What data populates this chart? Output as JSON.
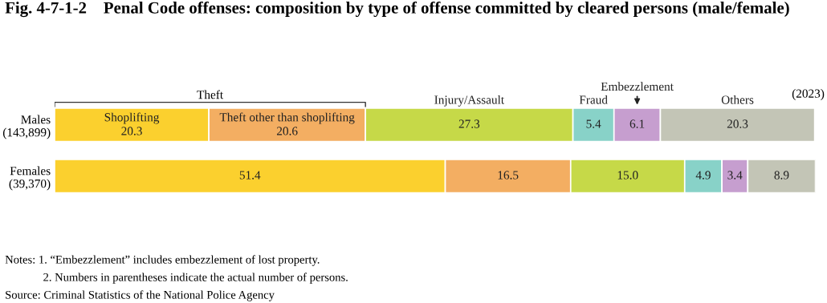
{
  "chart_data": {
    "type": "bar",
    "orientation": "horizontal",
    "stacked": true,
    "grid": false,
    "legend": false,
    "tick_labels": "y",
    "title": "Fig. 4-7-1-2    Penal Code offenses: composition by type of offense committed by cleared persons (male/female)",
    "categories": [
      "Males\n(143,899)",
      "Females\n(39,370)"
    ],
    "series": [
      {
        "name": "Shoplifting",
        "color": "#fbd02e",
        "values": [
          20.3,
          51.4
        ],
        "value_labels": [
          "20.3",
          "51.4"
        ]
      },
      {
        "name": "Theft other than shoplifting",
        "color": "#f3ae62",
        "values": [
          20.6,
          16.5
        ],
        "value_labels": [
          "20.6",
          "16.5"
        ]
      },
      {
        "name": "Injury/Assault",
        "color": "#c6d948",
        "values": [
          27.3,
          15.0
        ],
        "value_labels": [
          "27.3",
          "15.0"
        ]
      },
      {
        "name": "Fraud",
        "color": "#88d2c8",
        "values": [
          5.4,
          4.9
        ],
        "value_labels": [
          "5.4",
          "4.9"
        ]
      },
      {
        "name": "Embezzlement",
        "color": "#c69ecf",
        "values": [
          6.1,
          3.4
        ],
        "value_labels": [
          "6.1",
          "3.4"
        ]
      },
      {
        "name": "Others",
        "color": "#c3c5b6",
        "values": [
          20.3,
          8.9
        ],
        "value_labels": [
          "20.3",
          "8.9"
        ]
      }
    ],
    "annotations": [
      "(2023)",
      "Theft",
      "Notes: 1. “Embezzlement” includes embezzlement of lost property.",
      "2. Numbers in parentheses indicate the actual number of persons.",
      "Source: Criminal Statistics of the National Police Agency"
    ]
  }
}
